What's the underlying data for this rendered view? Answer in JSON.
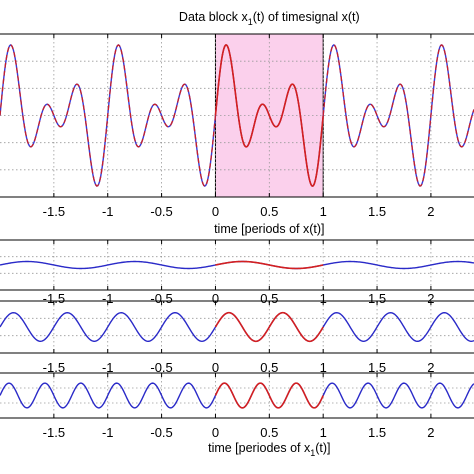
{
  "chart_data": [
    {
      "type": "line",
      "title": "Data block x_1(t) of timesignal x(t)",
      "title_parts": [
        "Data block x",
        "1",
        "(t) of timesignal x(t)"
      ],
      "xlabel": "time [periods of x(t)]",
      "xlim": [
        -2.0,
        2.4
      ],
      "ylim": [
        -1.2,
        1.2
      ],
      "xticks": [
        "-1.5",
        "-1",
        "-0.5",
        "0",
        "0.5",
        "1",
        "1.5",
        "2"
      ],
      "xtick_values": [
        -1.5,
        -1,
        -0.5,
        0,
        0.5,
        1,
        1.5,
        2
      ],
      "grid": "dotted",
      "highlight": {
        "x": [
          0,
          1
        ],
        "color": "#fbd0ec"
      },
      "series": [
        {
          "role": "periodic signal x(t)",
          "color": "#3a3ad6",
          "style": "solid",
          "components": [
            {
              "harmonic": 1,
              "amp": 0.15
            },
            {
              "harmonic": 2,
              "amp": 0.5
            },
            {
              "harmonic": 3,
              "amp": 0.5
            }
          ]
        },
        {
          "role": "periodic signal overlay",
          "color": "#c8202a",
          "style": "dashed",
          "components": [
            {
              "harmonic": 1,
              "amp": 0.15
            },
            {
              "harmonic": 2,
              "amp": 0.5
            },
            {
              "harmonic": 3,
              "amp": 0.5
            }
          ]
        },
        {
          "role": "data block x_1(t)",
          "color": "#d42020",
          "style": "solid",
          "xrange": [
            0,
            1
          ],
          "components": [
            {
              "harmonic": 1,
              "amp": 0.15
            },
            {
              "harmonic": 2,
              "amp": 0.5
            },
            {
              "harmonic": 3,
              "amp": 0.5
            }
          ]
        }
      ]
    },
    {
      "type": "line",
      "xlim": [
        -2.0,
        2.4
      ],
      "ylim": [
        -1.0,
        1.0
      ],
      "xticks": [
        "-1.5",
        "-1",
        "-0.5",
        "0",
        "0.5",
        "1",
        "1.5",
        "2"
      ],
      "xtick_values": [
        -1.5,
        -1,
        -0.5,
        0,
        0.5,
        1,
        1.5,
        2
      ],
      "grid": "dotted",
      "series": [
        {
          "role": "harmonic 1",
          "color": "#2a2ac8",
          "harmonic": 1,
          "amp": 0.14
        },
        {
          "role": "harmonic 1 in data block",
          "color": "#d42020",
          "harmonic": 1,
          "amp": 0.14,
          "xrange": [
            0,
            1
          ]
        }
      ]
    },
    {
      "type": "line",
      "xlim": [
        -2.0,
        2.4
      ],
      "ylim": [
        -1.0,
        1.0
      ],
      "xticks": [
        "-1.5",
        "-1",
        "-0.5",
        "0",
        "0.5",
        "1",
        "1.5",
        "2"
      ],
      "xtick_values": [
        -1.5,
        -1,
        -0.5,
        0,
        0.5,
        1,
        1.5,
        2
      ],
      "grid": "dotted",
      "series": [
        {
          "role": "harmonic 2",
          "color": "#2a2ac8",
          "harmonic": 2,
          "amp": 0.55
        },
        {
          "role": "harmonic 2 in data block",
          "color": "#d42020",
          "harmonic": 2,
          "amp": 0.55,
          "xrange": [
            0,
            1
          ]
        }
      ]
    },
    {
      "type": "line",
      "xlabel": "time [periodes of x_1(t)]",
      "xlabel_parts": [
        "time [periodes of x",
        "1",
        "(t)]"
      ],
      "xlim": [
        -2.0,
        2.4
      ],
      "ylim": [
        -1.0,
        1.0
      ],
      "xticks": [
        "-1.5",
        "-1",
        "-0.5",
        "0",
        "0.5",
        "1",
        "1.5",
        "2"
      ],
      "xtick_values": [
        -1.5,
        -1,
        -0.5,
        0,
        0.5,
        1,
        1.5,
        2
      ],
      "grid": "dotted",
      "series": [
        {
          "role": "harmonic 3",
          "color": "#2a2ac8",
          "harmonic": 3,
          "amp": 0.55
        },
        {
          "role": "harmonic 3 in data block",
          "color": "#d42020",
          "harmonic": 3,
          "amp": 0.55,
          "xrange": [
            0,
            1
          ]
        }
      ]
    }
  ]
}
